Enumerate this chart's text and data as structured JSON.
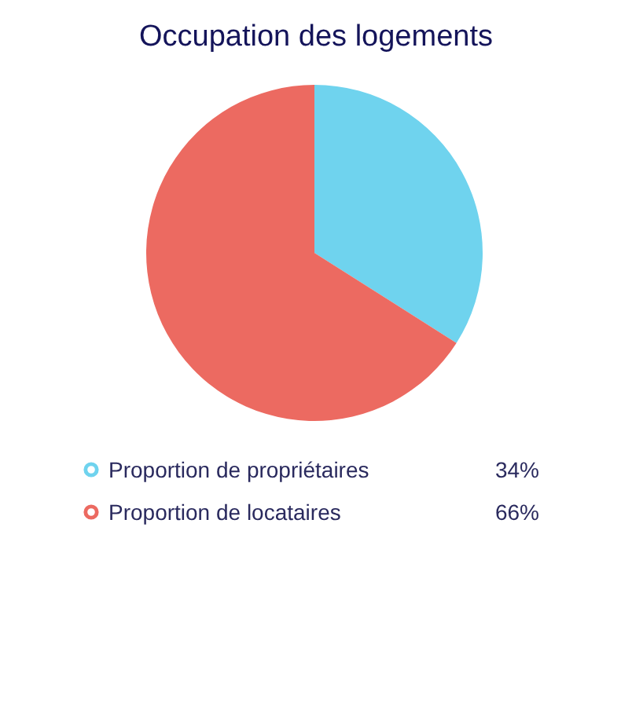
{
  "chart_data": {
    "type": "pie",
    "title": "Occupation des logements",
    "categories": [
      "Proportion de propriétaires",
      "Proportion de locataires"
    ],
    "values": [
      34,
      66
    ],
    "colors": [
      "#6fd3ee",
      "#ec6a61"
    ],
    "value_labels": [
      "34%",
      "66%"
    ],
    "legend": "bottom"
  }
}
